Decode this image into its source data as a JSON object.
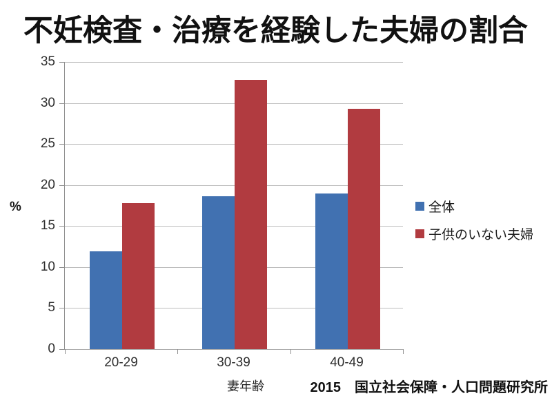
{
  "page": {
    "background": "#ffffff"
  },
  "chart_data": {
    "type": "bar",
    "title": "不妊検査・治療を経験した夫婦の割合",
    "categories": [
      "20-29",
      "30-39",
      "40-49"
    ],
    "series": [
      {
        "key": "overall",
        "name": "全体",
        "color": "#4171B1",
        "values": [
          11.9,
          18.6,
          19.0
        ]
      },
      {
        "key": "childless",
        "name": "子供のいない夫婦",
        "color": "#B13B40",
        "values": [
          17.8,
          32.8,
          29.3
        ]
      }
    ],
    "ylabel": "%",
    "xlabel": "妻年齢",
    "ylim": [
      0,
      35
    ],
    "yticks": [
      0,
      5,
      10,
      15,
      20,
      25,
      30,
      35
    ],
    "grid": true,
    "legend_position": "right",
    "source": "2015　国立社会保障・人口問題研究所",
    "gridline_color": "#bdbdbd",
    "axis_color": "#8f8f8f"
  }
}
